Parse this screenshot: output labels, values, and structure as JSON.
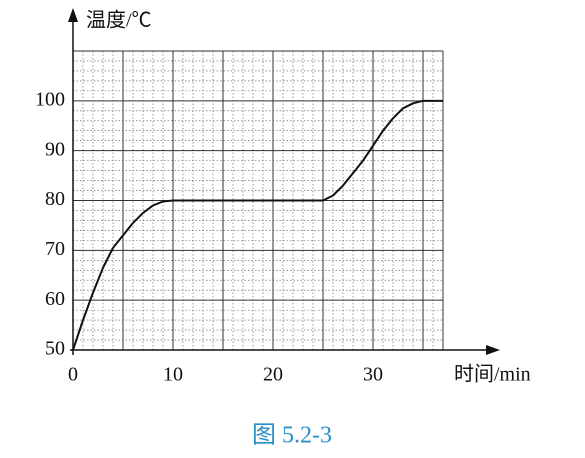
{
  "chart_data": {
    "type": "line",
    "ylabel": "温度/℃",
    "xlabel": "时间/min",
    "caption": "图 5.2-3",
    "x": [
      0,
      1,
      2,
      3,
      4,
      5,
      6,
      7,
      8,
      9,
      10,
      25,
      26,
      27,
      28,
      29,
      30,
      31,
      32,
      33,
      34,
      35,
      37
    ],
    "series": [
      {
        "color": "#111111",
        "values": [
          50,
          56,
          61.5,
          66.5,
          70.5,
          73,
          75.5,
          77.5,
          79,
          79.8,
          80,
          80,
          81,
          83,
          85.5,
          88,
          91,
          94,
          96.5,
          98.5,
          99.5,
          100,
          100
        ]
      }
    ],
    "xlim": [
      0,
      37
    ],
    "ylim": [
      50,
      110
    ],
    "xticks": [
      0,
      10,
      20,
      30
    ],
    "yticks": [
      50,
      60,
      70,
      80,
      90,
      100
    ],
    "grid": true
  }
}
